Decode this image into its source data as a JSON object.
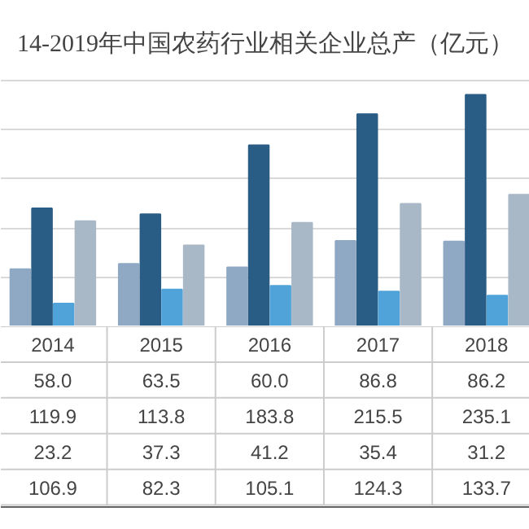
{
  "chart_data": {
    "type": "bar",
    "title": "14-2019年中国农药行业相关企业总产（亿元）",
    "categories": [
      "2014",
      "2015",
      "2016",
      "2017",
      "2018"
    ],
    "series": [
      {
        "color": "#8fa9c4",
        "values": [
          58.0,
          63.5,
          60.0,
          86.8,
          86.2
        ],
        "value_labels": [
          "58.0",
          "63.5",
          "60.0",
          "86.8",
          "86.2"
        ]
      },
      {
        "color": "#2a5d85",
        "values": [
          119.9,
          113.8,
          183.8,
          215.5,
          235.1
        ],
        "value_labels": [
          "119.9",
          "113.8",
          "183.8",
          "215.5",
          "235.1"
        ]
      },
      {
        "color": "#4fa3d9",
        "values": [
          23.2,
          37.3,
          41.2,
          35.4,
          31.2
        ],
        "value_labels": [
          "23.2",
          "37.3",
          "41.2",
          "35.4",
          "31.2"
        ]
      },
      {
        "color": "#a9b8c6",
        "values": [
          106.9,
          82.3,
          105.1,
          124.3,
          133.7
        ],
        "value_labels": [
          "106.9",
          "82.3",
          "105.1",
          "124.3",
          "133.7"
        ]
      }
    ],
    "grid": "y",
    "tick_labels": "x"
  }
}
